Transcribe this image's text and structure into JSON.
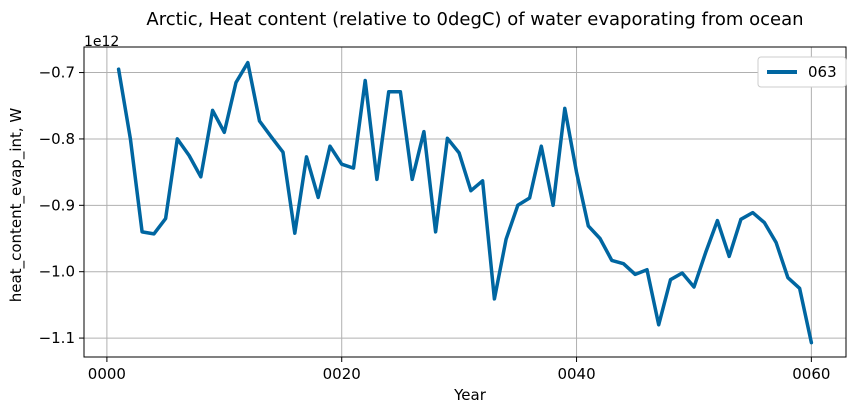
{
  "chart_data": {
    "type": "line",
    "title": "Arctic, Heat content (relative to 0degC) of water evaporating from ocean",
    "xlabel": "Year",
    "ylabel": "heat_content_evap_int, W",
    "y_offset_label": "1e12",
    "xlim": [
      -1.95,
      62.95
    ],
    "ylim": [
      -1.1285,
      -0.6615
    ],
    "x_ticks": [
      0,
      20,
      40,
      60
    ],
    "x_tick_labels": [
      "0000",
      "0020",
      "0040",
      "0060"
    ],
    "y_ticks": [
      -0.7,
      -0.8,
      -0.9,
      -1.0,
      -1.1
    ],
    "y_tick_labels": [
      "−0.7",
      "−0.8",
      "−0.9",
      "−1.0",
      "−1.1"
    ],
    "grid": true,
    "legend_position": "top-right",
    "series": [
      {
        "name": "063",
        "color": "#0066a1",
        "x": [
          1,
          2,
          3,
          4,
          5,
          6,
          7,
          8,
          9,
          10,
          11,
          12,
          13,
          14,
          15,
          16,
          17,
          18,
          19,
          20,
          21,
          22,
          23,
          24,
          25,
          26,
          27,
          28,
          29,
          30,
          31,
          32,
          33,
          34,
          35,
          36,
          37,
          38,
          39,
          40,
          41,
          42,
          43,
          44,
          45,
          46,
          47,
          48,
          49,
          50,
          51,
          52,
          53,
          54,
          55,
          56,
          57,
          58,
          59,
          60
        ],
        "values": [
          -0.695,
          -0.8,
          -0.94,
          -0.943,
          -0.92,
          -0.8,
          -0.825,
          -0.857,
          -0.757,
          -0.79,
          -0.715,
          -0.685,
          -0.773,
          -0.797,
          -0.82,
          -0.942,
          -0.827,
          -0.888,
          -0.811,
          -0.838,
          -0.844,
          -0.712,
          -0.861,
          -0.729,
          -0.729,
          -0.861,
          -0.789,
          -0.94,
          -0.799,
          -0.821,
          -0.878,
          -0.863,
          -1.041,
          -0.951,
          -0.9,
          -0.889,
          -0.811,
          -0.9,
          -0.754,
          -0.85,
          -0.931,
          -0.95,
          -0.983,
          -0.988,
          -1.004,
          -0.997,
          -1.08,
          -1.012,
          -1.002,
          -1.023,
          -0.971,
          -0.923,
          -0.977,
          -0.921,
          -0.911,
          -0.926,
          -0.956,
          -1.009,
          -1.025,
          -1.107
        ]
      }
    ]
  }
}
